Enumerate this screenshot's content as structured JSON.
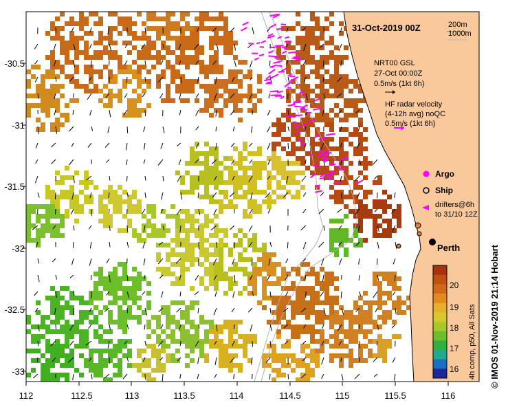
{
  "map": {
    "title": "31-Oct-2019 00Z",
    "x_ticks": [
      "112",
      "112.5",
      "113",
      "113.5",
      "114",
      "114.5",
      "115",
      "115.5",
      "116"
    ],
    "y_ticks": [
      "-30.5",
      "-31",
      "-31.5",
      "-32",
      "-32.5",
      "-33"
    ],
    "lon_range": [
      112,
      116.3
    ],
    "lat_range": [
      -30.1,
      -33.1
    ],
    "depth_legend": [
      "200m",
      "1000m"
    ],
    "gsl_label": "NRT00 GSL",
    "gsl_date": "27-Oct 00:00Z",
    "gsl_scale": "0.5m/s (1kt 6h)",
    "hf_label_1": "HF radar velocity",
    "hf_label_2": "(4-12h avg) noQC",
    "hf_scale": "0.5m/s (1kt 6h)",
    "legend_argo": "Argo",
    "legend_ship": "Ship",
    "legend_drifters_1": "drifters@6h",
    "legend_drifters_2": "to 31/10 12Z",
    "city": "Perth",
    "colorbar_ticks": [
      "20",
      "19",
      "18",
      "17",
      "16"
    ],
    "colorbar_label": "4h comp, p50, All Sats",
    "credit": "© IMOS 01-Nov-2019 21:14 Hobart",
    "colors": {
      "land": "#f9c89b",
      "hf_vectors": "#ff00ff",
      "shelf_contour": "#b0b0b0",
      "warm": "#b54a12",
      "cool": "#3cb41e"
    }
  }
}
